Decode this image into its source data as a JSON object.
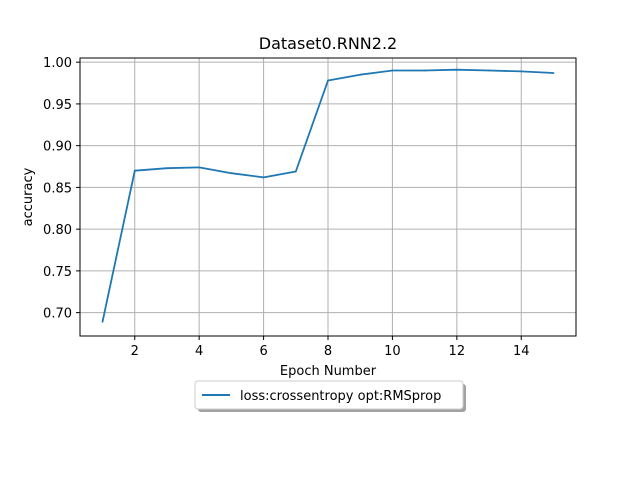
{
  "chart_data": {
    "type": "line",
    "title": "Dataset0.RNN2.2",
    "xlabel": "Epoch Number",
    "ylabel": "accuracy",
    "xlim": [
      0.3,
      15.7
    ],
    "ylim": [
      0.672,
      1.005
    ],
    "xticks": [
      2,
      4,
      6,
      8,
      10,
      12,
      14
    ],
    "yticks": [
      0.7,
      0.75,
      0.8,
      0.85,
      0.9,
      0.95,
      1.0
    ],
    "ytick_labels": [
      "0.70",
      "0.75",
      "0.80",
      "0.85",
      "0.90",
      "0.95",
      "1.00"
    ],
    "grid": true,
    "legend_position": "below-center",
    "series": [
      {
        "name": "loss:crossentropy opt:RMSprop",
        "color": "#1f77b4",
        "x": [
          1,
          2,
          3,
          4,
          5,
          6,
          7,
          8,
          9,
          10,
          11,
          12,
          13,
          14,
          15
        ],
        "y": [
          0.689,
          0.87,
          0.873,
          0.874,
          0.867,
          0.862,
          0.869,
          0.978,
          0.985,
          0.99,
          0.99,
          0.991,
          0.99,
          0.989,
          0.987
        ]
      }
    ]
  }
}
